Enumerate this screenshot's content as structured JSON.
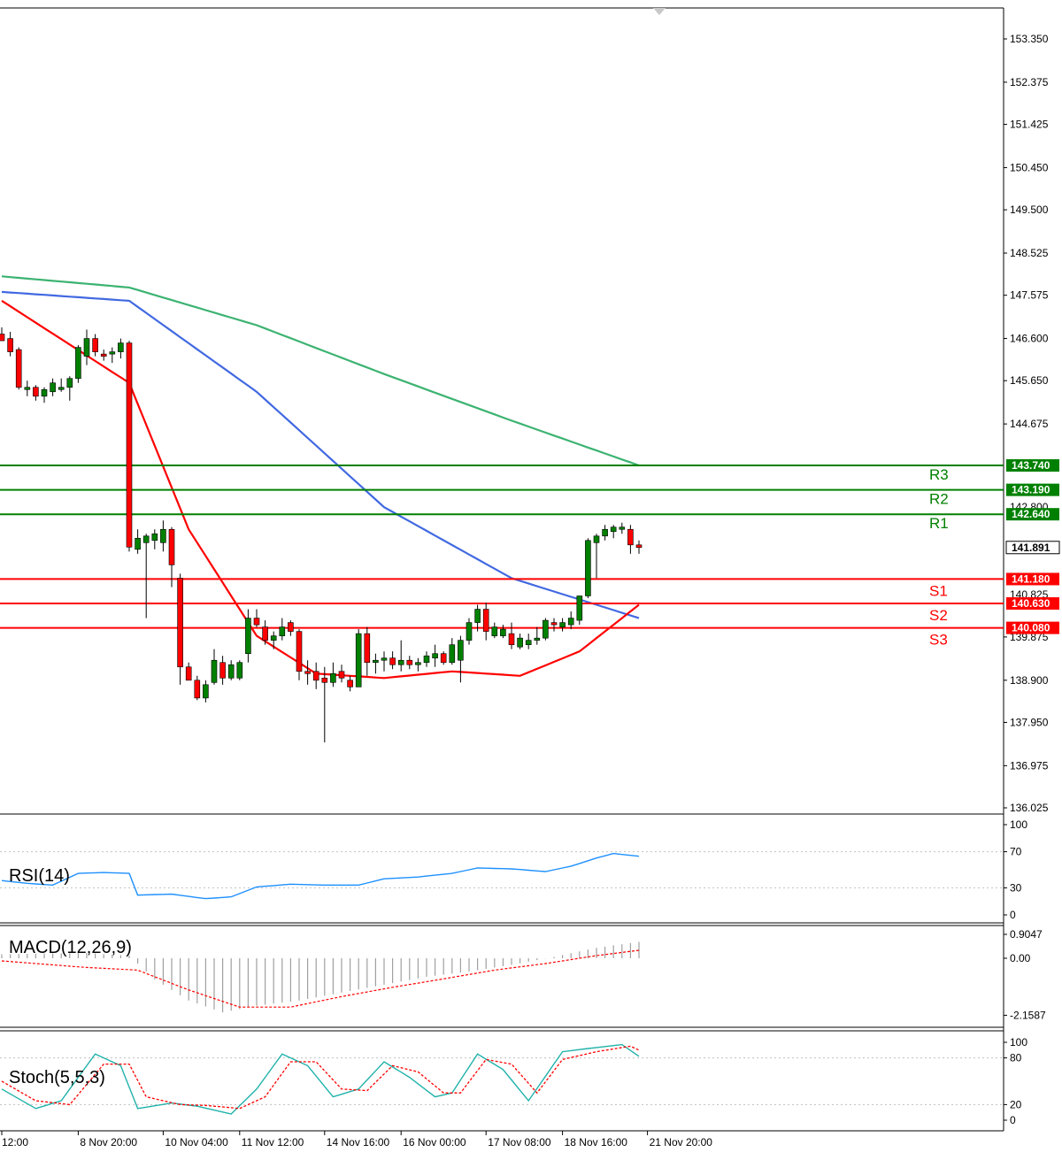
{
  "chart_data": {
    "type": "candlestick",
    "title": "",
    "price_axis": {
      "ylim": [
        136.025,
        153.85
      ],
      "ticks": [
        "153.350",
        "152.375",
        "151.425",
        "150.450",
        "149.500",
        "148.525",
        "147.575",
        "146.600",
        "145.650",
        "144.675",
        "139.875",
        "138.900",
        "137.950",
        "136.975",
        "136.025"
      ]
    },
    "x_ticks": [
      "12:00",
      "8 Nov 20:00",
      "10 Nov 04:00",
      "11 Nov 12:00",
      "14 Nov 16:00",
      "16 Nov 00:00",
      "17 Nov 08:00",
      "18 Nov 16:00",
      "21 Nov 20:00"
    ],
    "x_tick_index": [
      0,
      9,
      19,
      28,
      38,
      47,
      57,
      66,
      76
    ],
    "candles": [
      {
        "o": 146.7,
        "h": 146.85,
        "l": 146.55,
        "c": 146.55
      },
      {
        "o": 146.6,
        "h": 146.75,
        "l": 146.2,
        "c": 146.3
      },
      {
        "o": 146.35,
        "h": 146.4,
        "l": 145.45,
        "c": 145.5
      },
      {
        "o": 145.45,
        "h": 145.65,
        "l": 145.3,
        "c": 145.5
      },
      {
        "o": 145.5,
        "h": 145.55,
        "l": 145.2,
        "c": 145.3
      },
      {
        "o": 145.3,
        "h": 145.5,
        "l": 145.15,
        "c": 145.45
      },
      {
        "o": 145.4,
        "h": 145.7,
        "l": 145.3,
        "c": 145.6
      },
      {
        "o": 145.45,
        "h": 145.7,
        "l": 145.4,
        "c": 145.5
      },
      {
        "o": 145.5,
        "h": 145.75,
        "l": 145.2,
        "c": 145.7
      },
      {
        "o": 145.7,
        "h": 146.45,
        "l": 145.6,
        "c": 146.4
      },
      {
        "o": 146.2,
        "h": 146.8,
        "l": 146.0,
        "c": 146.6
      },
      {
        "o": 146.6,
        "h": 146.7,
        "l": 146.2,
        "c": 146.3
      },
      {
        "o": 146.25,
        "h": 146.35,
        "l": 146.1,
        "c": 146.2
      },
      {
        "o": 146.25,
        "h": 146.4,
        "l": 146.05,
        "c": 146.3
      },
      {
        "o": 146.3,
        "h": 146.6,
        "l": 146.15,
        "c": 146.5
      },
      {
        "o": 146.5,
        "h": 146.55,
        "l": 141.8,
        "c": 141.9
      },
      {
        "o": 141.85,
        "h": 142.3,
        "l": 141.75,
        "c": 142.1
      },
      {
        "o": 142.0,
        "h": 142.2,
        "l": 140.3,
        "c": 142.15
      },
      {
        "o": 142.05,
        "h": 142.3,
        "l": 141.85,
        "c": 142.2
      },
      {
        "o": 142.0,
        "h": 142.5,
        "l": 141.8,
        "c": 142.3
      },
      {
        "o": 142.3,
        "h": 142.35,
        "l": 141.0,
        "c": 141.5
      },
      {
        "o": 141.2,
        "h": 141.3,
        "l": 138.8,
        "c": 139.2
      },
      {
        "o": 139.2,
        "h": 139.3,
        "l": 138.9,
        "c": 138.9
      },
      {
        "o": 138.9,
        "h": 139.0,
        "l": 138.45,
        "c": 138.5
      },
      {
        "o": 138.5,
        "h": 138.9,
        "l": 138.4,
        "c": 138.8
      },
      {
        "o": 138.85,
        "h": 139.6,
        "l": 138.8,
        "c": 139.35
      },
      {
        "o": 139.3,
        "h": 139.45,
        "l": 138.8,
        "c": 138.95
      },
      {
        "o": 138.95,
        "h": 139.35,
        "l": 138.9,
        "c": 139.25
      },
      {
        "o": 138.95,
        "h": 139.35,
        "l": 138.9,
        "c": 139.3
      },
      {
        "o": 139.5,
        "h": 140.5,
        "l": 139.3,
        "c": 140.3
      },
      {
        "o": 140.3,
        "h": 140.5,
        "l": 140.1,
        "c": 140.15
      },
      {
        "o": 140.1,
        "h": 140.25,
        "l": 139.7,
        "c": 139.8
      },
      {
        "o": 139.8,
        "h": 140.0,
        "l": 139.6,
        "c": 139.9
      },
      {
        "o": 139.9,
        "h": 140.3,
        "l": 139.8,
        "c": 140.1
      },
      {
        "o": 140.2,
        "h": 140.25,
        "l": 139.9,
        "c": 140.0
      },
      {
        "o": 140.0,
        "h": 140.05,
        "l": 138.9,
        "c": 139.1
      },
      {
        "o": 139.1,
        "h": 139.35,
        "l": 138.8,
        "c": 139.05
      },
      {
        "o": 139.1,
        "h": 139.3,
        "l": 138.7,
        "c": 138.9
      },
      {
        "o": 138.95,
        "h": 139.2,
        "l": 137.5,
        "c": 138.85
      },
      {
        "o": 138.85,
        "h": 139.3,
        "l": 138.75,
        "c": 139.05
      },
      {
        "o": 139.1,
        "h": 139.25,
        "l": 138.85,
        "c": 138.95
      },
      {
        "o": 138.9,
        "h": 139.0,
        "l": 138.65,
        "c": 138.75
      },
      {
        "o": 138.75,
        "h": 140.05,
        "l": 138.75,
        "c": 139.95
      },
      {
        "o": 139.95,
        "h": 140.1,
        "l": 139.0,
        "c": 139.3
      },
      {
        "o": 139.3,
        "h": 139.5,
        "l": 139.05,
        "c": 139.35
      },
      {
        "o": 139.35,
        "h": 139.55,
        "l": 139.1,
        "c": 139.4
      },
      {
        "o": 139.4,
        "h": 139.55,
        "l": 139.15,
        "c": 139.25
      },
      {
        "o": 139.25,
        "h": 139.8,
        "l": 139.1,
        "c": 139.35
      },
      {
        "o": 139.35,
        "h": 139.45,
        "l": 139.15,
        "c": 139.25
      },
      {
        "o": 139.25,
        "h": 139.4,
        "l": 139.1,
        "c": 139.3
      },
      {
        "o": 139.3,
        "h": 139.55,
        "l": 139.2,
        "c": 139.45
      },
      {
        "o": 139.4,
        "h": 139.7,
        "l": 139.2,
        "c": 139.5
      },
      {
        "o": 139.5,
        "h": 139.55,
        "l": 139.25,
        "c": 139.3
      },
      {
        "o": 139.3,
        "h": 139.85,
        "l": 139.25,
        "c": 139.7
      },
      {
        "o": 139.35,
        "h": 139.9,
        "l": 138.85,
        "c": 139.8
      },
      {
        "o": 139.8,
        "h": 140.3,
        "l": 139.7,
        "c": 140.2
      },
      {
        "o": 140.2,
        "h": 140.6,
        "l": 140.0,
        "c": 140.5
      },
      {
        "o": 140.5,
        "h": 140.65,
        "l": 139.8,
        "c": 140.0
      },
      {
        "o": 139.9,
        "h": 140.2,
        "l": 139.85,
        "c": 140.1
      },
      {
        "o": 139.9,
        "h": 140.15,
        "l": 139.85,
        "c": 140.05
      },
      {
        "o": 139.95,
        "h": 140.2,
        "l": 139.6,
        "c": 139.7
      },
      {
        "o": 139.65,
        "h": 139.95,
        "l": 139.6,
        "c": 139.85
      },
      {
        "o": 139.7,
        "h": 139.95,
        "l": 139.6,
        "c": 139.8
      },
      {
        "o": 139.8,
        "h": 140.1,
        "l": 139.7,
        "c": 139.85
      },
      {
        "o": 139.85,
        "h": 140.3,
        "l": 139.8,
        "c": 140.25
      },
      {
        "o": 140.2,
        "h": 140.3,
        "l": 140.0,
        "c": 140.15
      },
      {
        "o": 140.1,
        "h": 140.3,
        "l": 140.0,
        "c": 140.2
      },
      {
        "o": 140.15,
        "h": 140.45,
        "l": 140.05,
        "c": 140.3
      },
      {
        "o": 140.25,
        "h": 140.8,
        "l": 140.15,
        "c": 140.8
      },
      {
        "o": 140.8,
        "h": 142.1,
        "l": 140.75,
        "c": 142.05
      },
      {
        "o": 142.0,
        "h": 142.2,
        "l": 141.2,
        "c": 142.15
      },
      {
        "o": 142.15,
        "h": 142.4,
        "l": 142.05,
        "c": 142.3
      },
      {
        "o": 142.25,
        "h": 142.4,
        "l": 142.1,
        "c": 142.35
      },
      {
        "o": 142.3,
        "h": 142.45,
        "l": 142.2,
        "c": 142.35
      },
      {
        "o": 142.3,
        "h": 142.4,
        "l": 141.75,
        "c": 141.95
      },
      {
        "o": 141.95,
        "h": 142.05,
        "l": 141.75,
        "c": 141.891
      }
    ],
    "moving_averages": [
      {
        "name": "MA-green",
        "color": "#3cb371",
        "anchors": [
          [
            0,
            148.0
          ],
          [
            15,
            147.75
          ],
          [
            30,
            146.9
          ],
          [
            45,
            145.8
          ],
          [
            60,
            144.75
          ],
          [
            75,
            143.74
          ]
        ]
      },
      {
        "name": "MA-blue",
        "color": "#4169e1",
        "anchors": [
          [
            0,
            147.65
          ],
          [
            15,
            147.45
          ],
          [
            30,
            145.4
          ],
          [
            45,
            142.8
          ],
          [
            60,
            141.2
          ],
          [
            75,
            140.3
          ]
        ]
      },
      {
        "name": "MA-red",
        "color": "#ff0000",
        "anchors": [
          [
            0,
            147.45
          ],
          [
            15,
            145.6
          ],
          [
            22,
            142.3
          ],
          [
            30,
            139.9
          ],
          [
            37,
            139.05
          ],
          [
            45,
            138.95
          ],
          [
            53,
            139.1
          ],
          [
            61,
            139.0
          ],
          [
            68,
            139.55
          ],
          [
            75,
            140.6
          ]
        ]
      }
    ],
    "levels": [
      {
        "name": "R3",
        "value": 143.74,
        "label": "143.740",
        "color": "#008000"
      },
      {
        "name": "R2",
        "value": 143.19,
        "label": "143.190",
        "color": "#008000"
      },
      {
        "name": "R1",
        "value": 142.64,
        "label": "142.640",
        "color": "#008000"
      },
      {
        "name": "S1",
        "value": 141.18,
        "label": "141.180",
        "color": "#ff0000"
      },
      {
        "name": "S2",
        "value": 140.63,
        "label": "140.630",
        "color": "#ff0000"
      },
      {
        "name": "S3",
        "value": 140.08,
        "label": "140.080",
        "color": "#ff0000"
      }
    ],
    "hidden_tick_stubs": [
      "142.800",
      "140.825"
    ],
    "current_price": {
      "value": 141.891,
      "label": "141.891"
    },
    "colors": {
      "up": "#008000",
      "down": "#ff0000",
      "axis": "#000000",
      "grid": "#c0c0c0"
    },
    "rsi": {
      "name": "RSI(14)",
      "ylim": [
        0,
        100
      ],
      "ticks": [
        "100",
        "70",
        "30",
        "0"
      ],
      "tick_values": [
        100,
        70,
        30,
        0
      ],
      "color": "#1e90ff",
      "anchors": [
        [
          0,
          38
        ],
        [
          3,
          35
        ],
        [
          6,
          33
        ],
        [
          9,
          46
        ],
        [
          12,
          47
        ],
        [
          15,
          46
        ],
        [
          16,
          22
        ],
        [
          20,
          23
        ],
        [
          24,
          18
        ],
        [
          27,
          20
        ],
        [
          30,
          31
        ],
        [
          34,
          34
        ],
        [
          38,
          33
        ],
        [
          42,
          33
        ],
        [
          45,
          40
        ],
        [
          49,
          42
        ],
        [
          53,
          46
        ],
        [
          56,
          52
        ],
        [
          60,
          51
        ],
        [
          64,
          48
        ],
        [
          67,
          54
        ],
        [
          70,
          63
        ],
        [
          72,
          68
        ],
        [
          75,
          65
        ]
      ]
    },
    "macd": {
      "name": "MACD(12,26,9)",
      "ylim": [
        -2.1587,
        0.9047
      ],
      "ticks": [
        "0.9047",
        "0.00",
        "-2.1587"
      ],
      "tick_values": [
        0.9047,
        0,
        -2.1587
      ],
      "hist_color": "#a0a0a0",
      "signal_color": "#ff0000",
      "hist_anchors": [
        [
          0,
          0.15
        ],
        [
          10,
          0.2
        ],
        [
          15,
          0.1
        ],
        [
          18,
          -0.8
        ],
        [
          22,
          -1.6
        ],
        [
          26,
          -2.05
        ],
        [
          30,
          -1.8
        ],
        [
          35,
          -1.6
        ],
        [
          40,
          -1.3
        ],
        [
          45,
          -1.0
        ],
        [
          50,
          -0.7
        ],
        [
          55,
          -0.5
        ],
        [
          60,
          -0.25
        ],
        [
          65,
          0.05
        ],
        [
          70,
          0.4
        ],
        [
          75,
          0.62
        ]
      ],
      "signal_anchors": [
        [
          0,
          -0.1
        ],
        [
          10,
          -0.35
        ],
        [
          16,
          -0.45
        ],
        [
          22,
          -1.2
        ],
        [
          28,
          -1.85
        ],
        [
          34,
          -1.85
        ],
        [
          40,
          -1.45
        ],
        [
          46,
          -1.1
        ],
        [
          52,
          -0.78
        ],
        [
          58,
          -0.45
        ],
        [
          64,
          -0.2
        ],
        [
          70,
          0.1
        ],
        [
          75,
          0.3
        ]
      ]
    },
    "stoch": {
      "name": "Stoch(5,5,3)",
      "ylim": [
        0,
        100
      ],
      "ticks": [
        "100",
        "80",
        "20",
        "0"
      ],
      "tick_values": [
        100,
        80,
        20,
        0
      ],
      "main_color": "#20b2aa",
      "signal_color": "#ff0000",
      "main_anchors": [
        [
          0,
          40
        ],
        [
          4,
          15
        ],
        [
          7,
          25
        ],
        [
          11,
          85
        ],
        [
          14,
          70
        ],
        [
          16,
          15
        ],
        [
          20,
          22
        ],
        [
          23,
          18
        ],
        [
          27,
          8
        ],
        [
          30,
          40
        ],
        [
          33,
          85
        ],
        [
          36,
          70
        ],
        [
          39,
          30
        ],
        [
          42,
          40
        ],
        [
          45,
          75
        ],
        [
          48,
          55
        ],
        [
          51,
          30
        ],
        [
          53,
          35
        ],
        [
          56,
          85
        ],
        [
          59,
          65
        ],
        [
          62,
          25
        ],
        [
          66,
          88
        ],
        [
          69,
          92
        ],
        [
          73,
          97
        ],
        [
          75,
          82
        ]
      ],
      "signal_anchors": [
        [
          0,
          50
        ],
        [
          4,
          25
        ],
        [
          8,
          20
        ],
        [
          12,
          72
        ],
        [
          15,
          72
        ],
        [
          17,
          30
        ],
        [
          21,
          20
        ],
        [
          24,
          19
        ],
        [
          28,
          15
        ],
        [
          31,
          30
        ],
        [
          34,
          75
        ],
        [
          37,
          75
        ],
        [
          40,
          40
        ],
        [
          43,
          38
        ],
        [
          46,
          70
        ],
        [
          49,
          62
        ],
        [
          52,
          35
        ],
        [
          54,
          35
        ],
        [
          57,
          78
        ],
        [
          60,
          72
        ],
        [
          63,
          35
        ],
        [
          66,
          78
        ],
        [
          70,
          88
        ],
        [
          74,
          95
        ],
        [
          75,
          90
        ]
      ]
    }
  }
}
